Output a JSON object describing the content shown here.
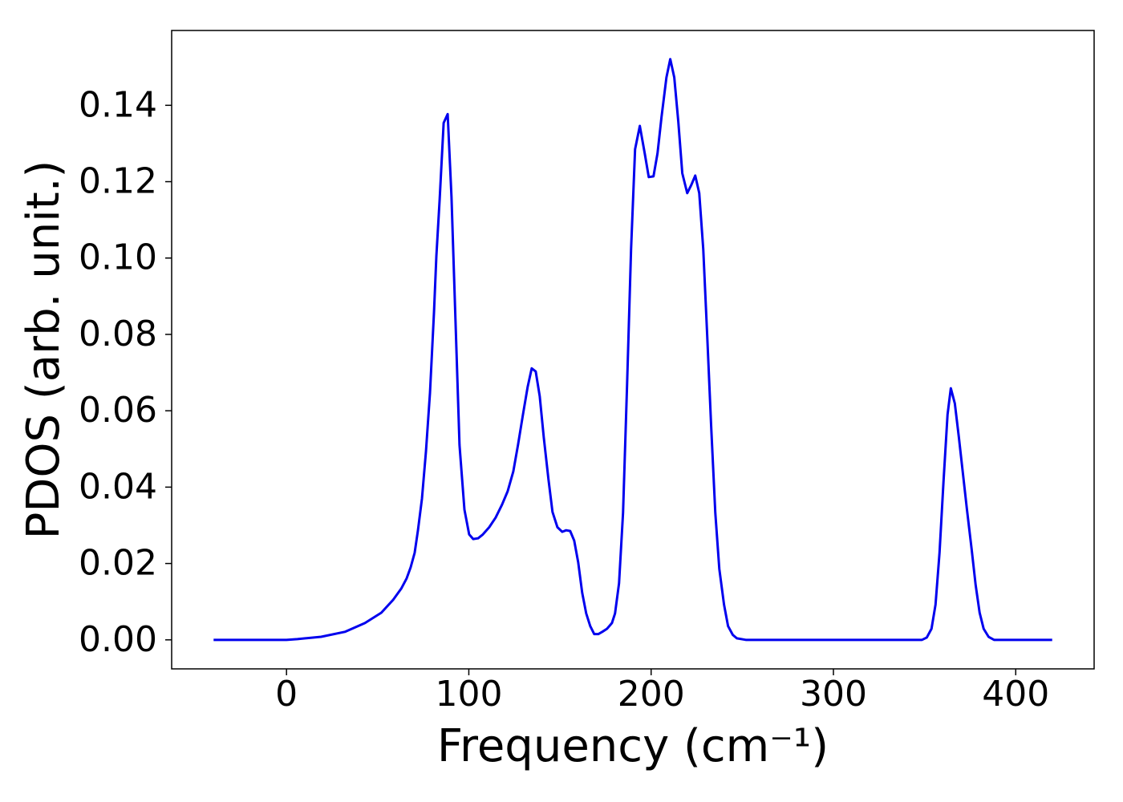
{
  "chart_data": {
    "type": "line",
    "xlabel": "Frequency (cm⁻¹)",
    "ylabel": "PDOS (arb. unit.)",
    "color": "#0000ee",
    "x": [
      -40,
      0,
      6,
      19,
      32,
      43,
      52,
      58.5,
      62.9,
      65.9,
      68.1,
      70.3,
      72.1,
      74.3,
      76.5,
      78.7,
      80.9,
      82.2,
      84.0,
      86.2,
      88.4,
      90.5,
      92.7,
      94.9,
      97.6,
      100.2,
      102.4,
      105.1,
      107.7,
      111.2,
      114.7,
      118.2,
      121.3,
      124.4,
      127.0,
      129.7,
      132.3,
      134.5,
      136.7,
      138.9,
      141.1,
      143.7,
      145.9,
      148.6,
      151.2,
      153.4,
      155.6,
      157.8,
      160.0,
      162.2,
      164.4,
      166.6,
      168.8,
      171.0,
      173.2,
      175.8,
      178.5,
      180.2,
      182.4,
      184.6,
      186.8,
      189.0,
      191.2,
      193.8,
      196.5,
      198.7,
      201.3,
      203.5,
      205.7,
      208.4,
      210.5,
      212.7,
      214.9,
      217.1,
      219.8,
      222.0,
      224.2,
      226.4,
      228.6,
      230.8,
      232.9,
      235.2,
      237.4,
      240.0,
      242.2,
      244.8,
      247.0,
      251.9,
      348.6,
      351.2,
      353.8,
      356.0,
      358.2,
      360.4,
      362.6,
      364.4,
      366.6,
      368.8,
      371.0,
      373.2,
      375.8,
      378.0,
      380.2,
      382.4,
      385.1,
      388.1,
      420
    ],
    "values": [
      0,
      0,
      0.0002,
      0.0008,
      0.0021,
      0.0044,
      0.0071,
      0.0105,
      0.0134,
      0.0161,
      0.019,
      0.0228,
      0.0287,
      0.037,
      0.0494,
      0.0647,
      0.0858,
      0.1005,
      0.1153,
      0.1354,
      0.1377,
      0.116,
      0.0835,
      0.051,
      0.0341,
      0.0276,
      0.0264,
      0.0266,
      0.0276,
      0.0295,
      0.032,
      0.0354,
      0.0389,
      0.0441,
      0.0511,
      0.059,
      0.0663,
      0.0711,
      0.0703,
      0.0638,
      0.0531,
      0.042,
      0.0335,
      0.0295,
      0.0283,
      0.0287,
      0.0285,
      0.026,
      0.0203,
      0.0123,
      0.0069,
      0.0036,
      0.0015,
      0.0015,
      0.0021,
      0.0029,
      0.0044,
      0.0069,
      0.0148,
      0.0333,
      0.0667,
      0.1023,
      0.1285,
      0.1346,
      0.1274,
      0.1212,
      0.1214,
      0.1274,
      0.1369,
      0.1473,
      0.1521,
      0.1473,
      0.1358,
      0.1222,
      0.117,
      0.1191,
      0.1216,
      0.117,
      0.1023,
      0.0793,
      0.0563,
      0.0333,
      0.0186,
      0.0092,
      0.0036,
      0.0013,
      0.0004,
      0,
      0,
      0.0006,
      0.0029,
      0.0092,
      0.0228,
      0.0416,
      0.059,
      0.0659,
      0.0619,
      0.0531,
      0.0437,
      0.0343,
      0.0238,
      0.0144,
      0.0071,
      0.0029,
      0.0008,
      0,
      0
    ],
    "xlim": [
      -63,
      443
    ],
    "ylim": [
      -0.0076,
      0.1596
    ],
    "xticks": [
      0,
      100,
      200,
      300,
      400
    ],
    "yticks": [
      {
        "value": 0,
        "label": "0.00"
      },
      {
        "value": 0.02,
        "label": "0.02"
      },
      {
        "value": 0.04,
        "label": "0.04"
      },
      {
        "value": 0.06,
        "label": "0.06"
      },
      {
        "value": 0.08,
        "label": "0.08"
      },
      {
        "value": 0.1,
        "label": "0.10"
      },
      {
        "value": 0.12,
        "label": "0.12"
      },
      {
        "value": 0.14,
        "label": "0.14"
      }
    ],
    "grid": false
  }
}
